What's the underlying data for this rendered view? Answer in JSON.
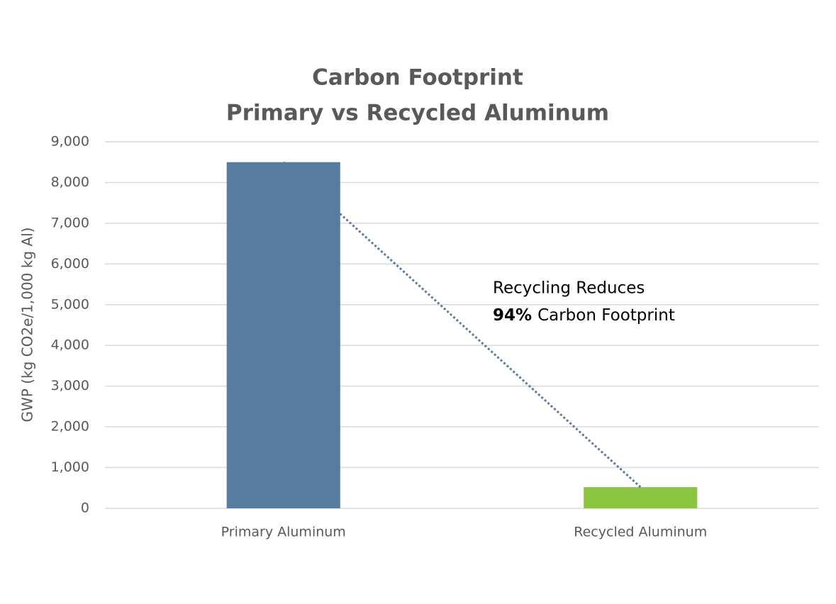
{
  "chart_data": {
    "type": "bar",
    "title": [
      "Carbon Footprint",
      "Primary vs Recycled Aluminum"
    ],
    "y_label": "GWP (kg CO2e/1,000 kg Al)",
    "categories": [
      "Primary Aluminum",
      "Recycled Aluminum"
    ],
    "values": [
      8500,
      520
    ],
    "colors": [
      "#587ba0",
      "#8bc540"
    ],
    "ylim": [
      0,
      9000
    ],
    "yticks": [
      0,
      {
        "value": 1000,
        "label": "1,000"
      },
      {
        "value": 2000,
        "label": "2,000"
      },
      {
        "value": 3000,
        "label": "3,000"
      },
      {
        "value": 4000,
        "label": "4,000"
      },
      {
        "value": 5000,
        "label": "5,000"
      },
      {
        "value": 6000,
        "label": "6,000"
      },
      {
        "value": 7000,
        "label": "7,000"
      },
      {
        "value": 8000,
        "label": "8,000"
      },
      {
        "value": 9000,
        "label": "9,000"
      }
    ],
    "grid": true,
    "trendline": true,
    "annotation": {
      "line1": "Recycling Reduces",
      "bold": "94%",
      "line2": "Carbon Footprint"
    }
  }
}
